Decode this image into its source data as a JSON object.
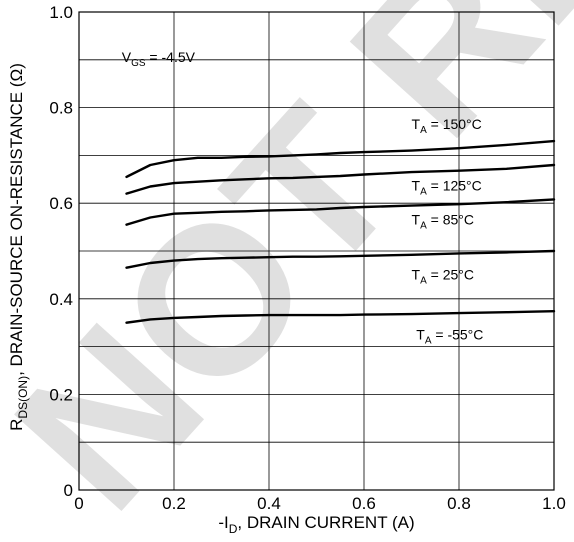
{
  "watermark_text": "NOT RECOMMENDED FOR NEW DESIGNS",
  "chart_data": {
    "type": "line",
    "title": "",
    "xlabel": {
      "prefix": "-I",
      "sub": "D",
      "suffix": ", DRAIN CURRENT (A)"
    },
    "ylabel": {
      "prefix": "R",
      "sub": "DS(ON)",
      "suffix": ", DRAIN-SOURCE ON-RESISTANCE (Ω)"
    },
    "xlim": [
      0,
      1.0
    ],
    "ylim": [
      0,
      1.0
    ],
    "x_ticks": [
      0,
      0.2,
      0.4,
      0.6,
      0.8,
      1.0
    ],
    "x_tick_labels": [
      "0",
      "0.2",
      "0.4",
      "0.6",
      "0.8",
      "1.0"
    ],
    "y_ticks": [
      0,
      0.2,
      0.4,
      0.6,
      0.8,
      1.0
    ],
    "y_tick_labels": [
      "0",
      "0.2",
      "0.4",
      "0.6",
      "0.8",
      "1.0"
    ],
    "x_grid_step": 0.2,
    "y_grid_step": 0.1,
    "grid": true,
    "condition": {
      "prefix": "V",
      "sub": "GS",
      "suffix": " = -4.5V"
    },
    "series": [
      {
        "name": {
          "prefix": "T",
          "sub": "A",
          "suffix": " = 150°C"
        },
        "x": [
          0.1,
          0.15,
          0.2,
          0.25,
          0.3,
          0.35,
          0.4,
          0.45,
          0.5,
          0.55,
          0.6,
          0.7,
          0.8,
          0.9,
          1.0
        ],
        "y": [
          0.655,
          0.68,
          0.69,
          0.695,
          0.695,
          0.697,
          0.698,
          0.7,
          0.702,
          0.705,
          0.707,
          0.71,
          0.715,
          0.722,
          0.73
        ]
      },
      {
        "name": {
          "prefix": "T",
          "sub": "A",
          "suffix": " = 125°C"
        },
        "x": [
          0.1,
          0.15,
          0.2,
          0.25,
          0.3,
          0.35,
          0.4,
          0.45,
          0.5,
          0.55,
          0.6,
          0.7,
          0.8,
          0.9,
          1.0
        ],
        "y": [
          0.62,
          0.635,
          0.642,
          0.645,
          0.648,
          0.65,
          0.652,
          0.653,
          0.655,
          0.657,
          0.66,
          0.665,
          0.668,
          0.672,
          0.68
        ]
      },
      {
        "name": {
          "prefix": "T",
          "sub": "A",
          "suffix": " = 85°C"
        },
        "x": [
          0.1,
          0.15,
          0.2,
          0.25,
          0.3,
          0.35,
          0.4,
          0.45,
          0.5,
          0.55,
          0.6,
          0.7,
          0.8,
          0.9,
          1.0
        ],
        "y": [
          0.555,
          0.57,
          0.578,
          0.58,
          0.582,
          0.583,
          0.585,
          0.586,
          0.587,
          0.59,
          0.592,
          0.595,
          0.598,
          0.602,
          0.608
        ]
      },
      {
        "name": {
          "prefix": "T",
          "sub": "A",
          "suffix": " = 25°C"
        },
        "x": [
          0.1,
          0.15,
          0.2,
          0.25,
          0.3,
          0.35,
          0.4,
          0.45,
          0.5,
          0.55,
          0.6,
          0.7,
          0.8,
          0.9,
          1.0
        ],
        "y": [
          0.465,
          0.475,
          0.48,
          0.483,
          0.485,
          0.486,
          0.487,
          0.488,
          0.488,
          0.489,
          0.49,
          0.492,
          0.495,
          0.497,
          0.5
        ]
      },
      {
        "name": {
          "prefix": "T",
          "sub": "A",
          "suffix": " = -55°C"
        },
        "x": [
          0.1,
          0.15,
          0.2,
          0.25,
          0.3,
          0.35,
          0.4,
          0.45,
          0.5,
          0.55,
          0.6,
          0.7,
          0.8,
          0.9,
          1.0
        ],
        "y": [
          0.35,
          0.357,
          0.36,
          0.362,
          0.364,
          0.365,
          0.366,
          0.366,
          0.366,
          0.366,
          0.367,
          0.368,
          0.37,
          0.372,
          0.374
        ]
      }
    ]
  }
}
